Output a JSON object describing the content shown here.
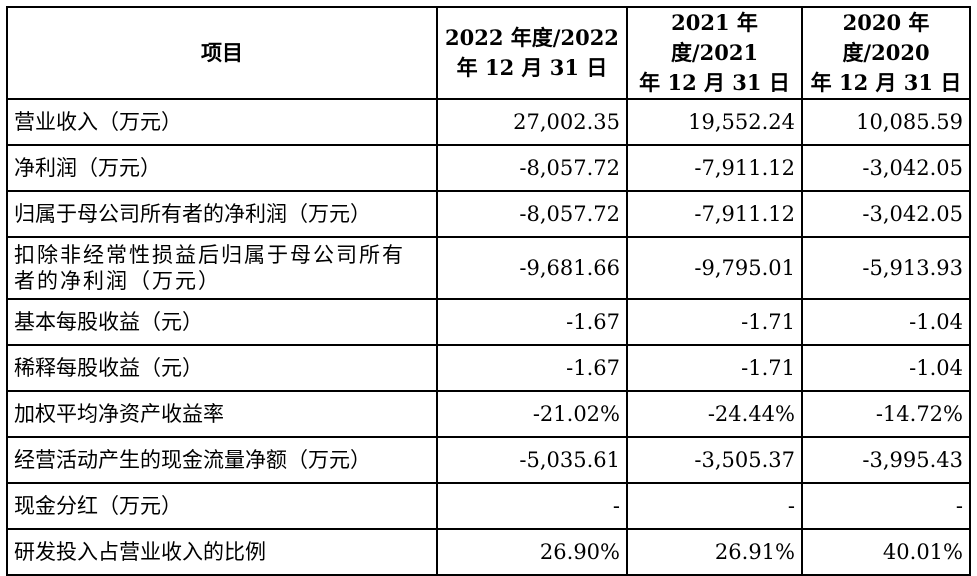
{
  "headers": {
    "item": "项目",
    "y2022": [
      "2022 年度/2022",
      "年 12 月 31 日"
    ],
    "y2021": [
      "2021 年度/2021",
      "年 12 月 31 日"
    ],
    "y2020": [
      "2020 年度/2020",
      "年 12 月 31 日"
    ]
  },
  "rows": [
    {
      "label": "营业收入（万元）",
      "v2022": "27,002.35",
      "v2021": "19,552.24",
      "v2020": "10,085.59"
    },
    {
      "label": "净利润（万元）",
      "v2022": "-8,057.72",
      "v2021": "-7,911.12",
      "v2020": "-3,042.05"
    },
    {
      "label": "归属于母公司所有者的净利润（万元）",
      "v2022": "-8,057.72",
      "v2021": "-7,911.12",
      "v2020": "-3,042.05"
    },
    {
      "label_lines": [
        "扣除非经常性损益后归属于母公司所有",
        "者的净利润（万元）"
      ],
      "v2022": "-9,681.66",
      "v2021": "-9,795.01",
      "v2020": "-5,913.93"
    },
    {
      "label": "基本每股收益（元）",
      "v2022": "-1.67",
      "v2021": "-1.71",
      "v2020": "-1.04"
    },
    {
      "label": "稀释每股收益（元）",
      "v2022": "-1.67",
      "v2021": "-1.71",
      "v2020": "-1.04"
    },
    {
      "label": "加权平均净资产收益率",
      "v2022": "-21.02%",
      "v2021": "-24.44%",
      "v2020": "-14.72%"
    },
    {
      "label": "经营活动产生的现金流量净额（万元）",
      "v2022": "-5,035.61",
      "v2021": "-3,505.37",
      "v2020": "-3,995.43"
    },
    {
      "label": "现金分红（万元）",
      "v2022": "-",
      "v2021": "-",
      "v2020": "-"
    },
    {
      "label": "研发投入占营业收入的比例",
      "v2022": "26.90%",
      "v2021": "26.91%",
      "v2020": "40.01%"
    }
  ]
}
